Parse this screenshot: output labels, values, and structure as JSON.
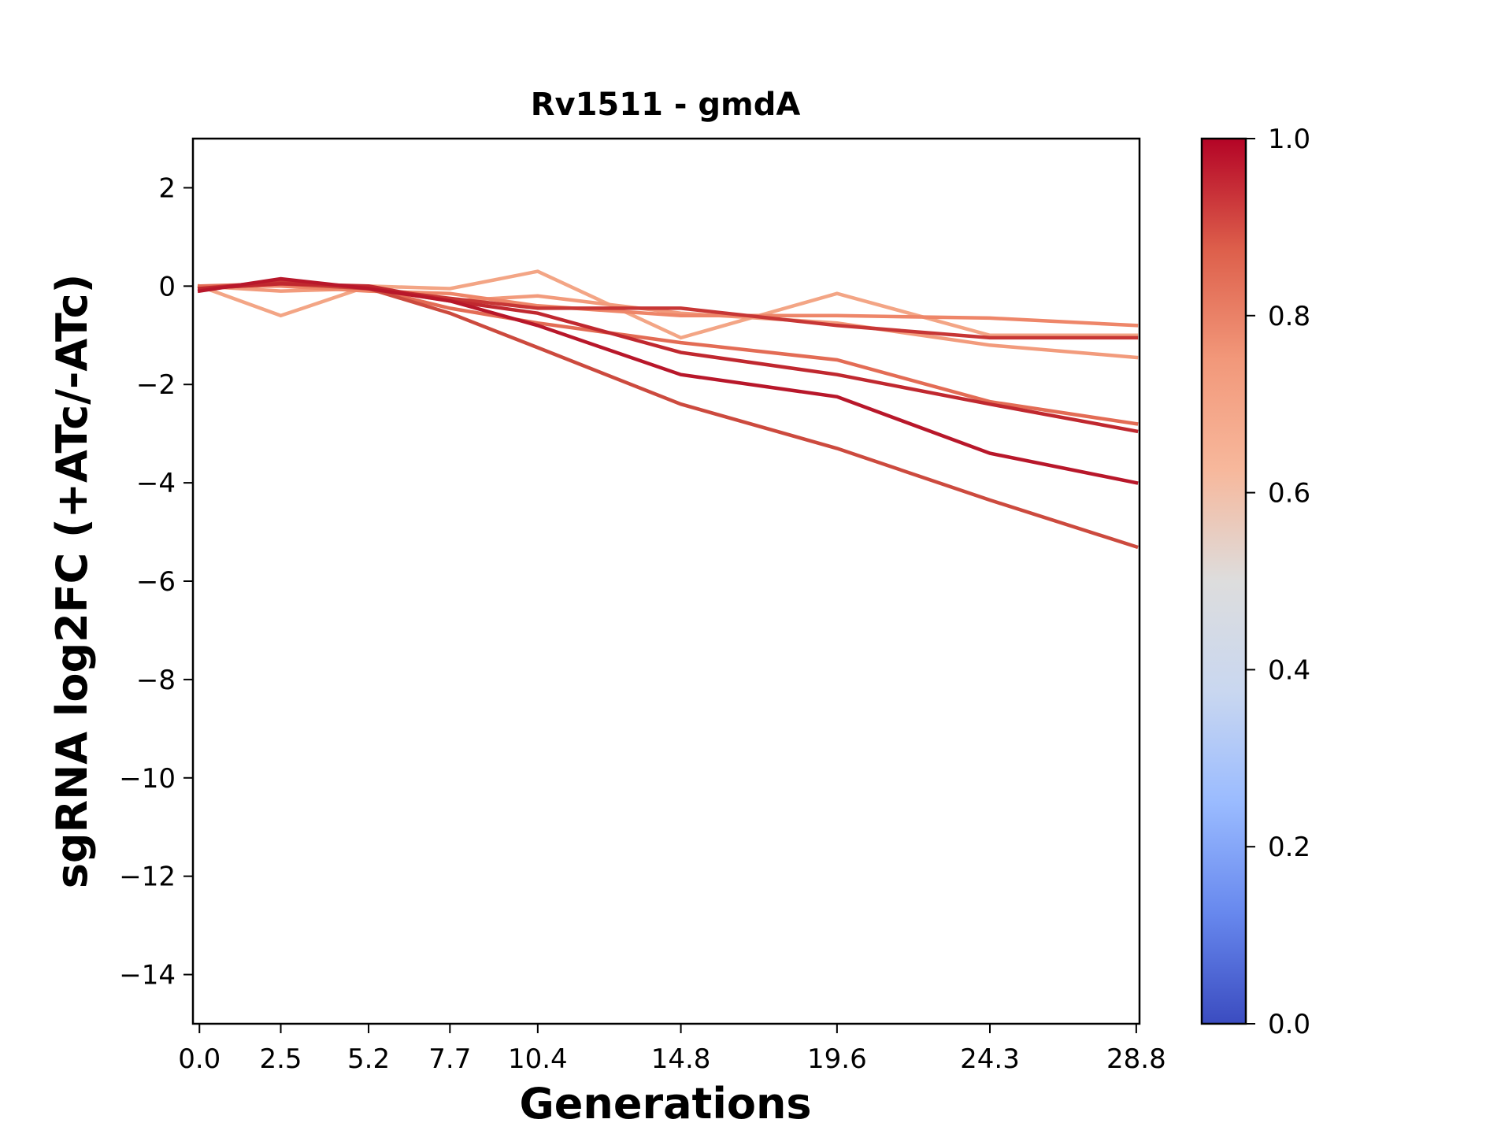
{
  "chart_data": {
    "type": "line",
    "title": "Rv1511 - gmdA",
    "xlabel": "Generations",
    "ylabel": "sgRNA log2FC (+ATc/-ATc)",
    "x": [
      0.0,
      2.5,
      5.2,
      7.7,
      10.4,
      14.8,
      19.6,
      24.3,
      28.8
    ],
    "x_tick_labels": [
      "0.0",
      "2.5",
      "5.2",
      "7.7",
      "10.4",
      "14.8",
      "19.6",
      "24.3",
      "28.8"
    ],
    "xlim": [
      -0.2,
      28.9
    ],
    "ylim": [
      -15,
      3
    ],
    "y_ticks": [
      2,
      0,
      -2,
      -4,
      -6,
      -8,
      -10,
      -12,
      -14
    ],
    "y_tick_labels": [
      "2",
      "0",
      "−2",
      "−4",
      "−6",
      "−8",
      "−10",
      "−12",
      "−14"
    ],
    "grid": false,
    "colormap": "coolwarm",
    "colorbar": {
      "range": [
        0.0,
        1.0
      ],
      "ticks": [
        0.0,
        0.2,
        0.4,
        0.6,
        0.8,
        1.0
      ],
      "tick_labels": [
        "0.0",
        "0.2",
        "0.4",
        "0.6",
        "0.8",
        "1.0"
      ],
      "stops": [
        "#3b4cc0",
        "#6788ee",
        "#9abbff",
        "#c9d7f0",
        "#dddddd",
        "#f7b89c",
        "#f2987a",
        "#dd5f4b",
        "#b40426"
      ]
    },
    "series": [
      {
        "color_value": 0.68,
        "color": "#f3a585",
        "values": [
          0.0,
          -0.6,
          0.0,
          -0.05,
          0.3,
          -1.05,
          -0.15,
          -1.0,
          -1.0
        ]
      },
      {
        "color_value": 0.7,
        "color": "#f29b7c",
        "values": [
          0.0,
          -0.1,
          -0.05,
          -0.3,
          -0.2,
          -0.55,
          -0.75,
          -1.2,
          -1.45
        ]
      },
      {
        "color_value": 0.74,
        "color": "#ee8669",
        "values": [
          0.0,
          0.0,
          -0.1,
          -0.15,
          -0.4,
          -0.6,
          -0.6,
          -0.65,
          -0.8
        ]
      },
      {
        "color_value": 0.83,
        "color": "#e36c55",
        "values": [
          0.0,
          0.05,
          -0.05,
          -0.45,
          -0.75,
          -1.15,
          -1.5,
          -2.35,
          -2.8
        ]
      },
      {
        "color_value": 0.91,
        "color": "#cc4a3e",
        "values": [
          -0.05,
          0.05,
          -0.05,
          -0.55,
          -1.25,
          -2.4,
          -3.3,
          -4.35,
          -5.3
        ]
      },
      {
        "color_value": 0.93,
        "color": "#c73635",
        "values": [
          -0.05,
          0.1,
          -0.05,
          -0.25,
          -0.45,
          -0.45,
          -0.8,
          -1.05,
          -1.05
        ]
      },
      {
        "color_value": 0.95,
        "color": "#c0282f",
        "values": [
          -0.05,
          0.05,
          0.0,
          -0.3,
          -0.55,
          -1.35,
          -1.8,
          -2.4,
          -2.95
        ]
      },
      {
        "color_value": 0.97,
        "color": "#b8172a",
        "values": [
          -0.1,
          0.15,
          -0.05,
          -0.3,
          -0.8,
          -1.8,
          -2.25,
          -3.4,
          -4.0
        ]
      }
    ]
  }
}
